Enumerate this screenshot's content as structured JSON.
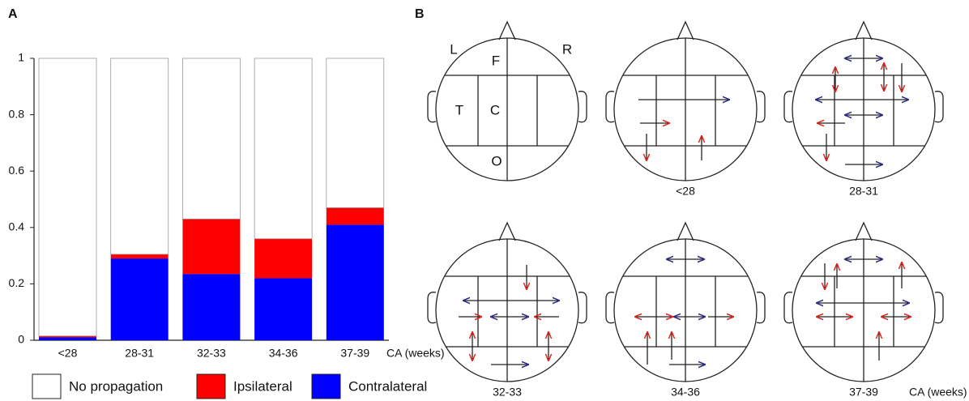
{
  "chart_data": {
    "type": "stacked-bar",
    "panel_label": "A",
    "categories": [
      "<28",
      "28-31",
      "32-33",
      "34-36",
      "37-39"
    ],
    "x_label": "CA (weeks)",
    "series": [
      {
        "name": "No propagation",
        "color": "#ffffff",
        "values": [
          0.985,
          0.695,
          0.57,
          0.64,
          0.53
        ]
      },
      {
        "name": "Ipsilateral",
        "color": "#ff0000",
        "values": [
          0.005,
          0.015,
          0.195,
          0.14,
          0.06
        ]
      },
      {
        "name": "Contralateral",
        "color": "#0000ff",
        "values": [
          0.01,
          0.29,
          0.235,
          0.22,
          0.41
        ]
      }
    ],
    "ylim": [
      0,
      1
    ],
    "yticks": [
      0,
      0.2,
      0.4,
      0.6,
      0.8,
      1
    ],
    "legend": "bottom"
  },
  "panel_b": {
    "label": "B",
    "region_labels": [
      "L",
      "F",
      "R",
      "T",
      "C",
      "O"
    ],
    "heads": [
      "<28",
      "28-31",
      "32-33",
      "34-36",
      "37-39"
    ],
    "x_unit": "CA (weeks)"
  }
}
